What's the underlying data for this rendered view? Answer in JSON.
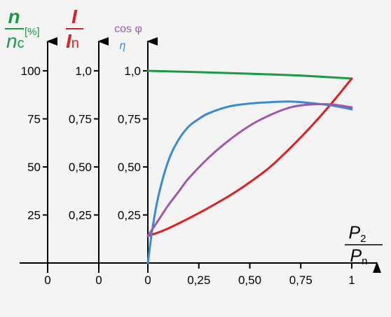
{
  "chart_data": {
    "type": "line",
    "x_axis": {
      "ticks": [
        {
          "value": 0,
          "label": "0"
        },
        {
          "value": 0.25,
          "label": "0,25"
        },
        {
          "value": 0.5,
          "label": "0,50"
        },
        {
          "value": 0.75,
          "label": "0,75"
        },
        {
          "value": 1,
          "label": "1"
        }
      ],
      "extra_zero_labels": [
        "0",
        "0"
      ],
      "label": {
        "num_main": "P",
        "num_sub": "2",
        "den_main": "P",
        "den_sub": "n"
      }
    },
    "y_axes": [
      {
        "id": "n",
        "label": {
          "num": "n",
          "den_main": "n",
          "den_sub": "c",
          "unit": "[%]"
        },
        "color": "#1a9a45",
        "range": [
          0,
          120
        ],
        "ticks": [
          {
            "value": 100,
            "label": "100"
          },
          {
            "value": 75,
            "label": "75"
          },
          {
            "value": 50,
            "label": "50"
          },
          {
            "value": 25,
            "label": "25"
          }
        ]
      },
      {
        "id": "I",
        "label": {
          "num": "I",
          "den_main": "I",
          "den_sub": "n"
        },
        "color": "#e02020",
        "range": [
          0,
          1.2
        ],
        "ticks": [
          {
            "value": 1.0,
            "label": "1,0"
          },
          {
            "value": 0.75,
            "label": "0,75"
          },
          {
            "value": 0.5,
            "label": "0,50"
          },
          {
            "value": 0.25,
            "label": "0,25"
          }
        ]
      },
      {
        "id": "cos",
        "label": {
          "line1": "cos φ",
          "line2": "η"
        },
        "color_line1": "#a058a8",
        "color_line2": "#3a8ad0",
        "range": [
          0,
          1.2
        ],
        "ticks": [
          {
            "value": 1.0,
            "label": "1,0"
          },
          {
            "value": 0.75,
            "label": "0,75"
          },
          {
            "value": 0.5,
            "label": "0,50"
          },
          {
            "value": 0.25,
            "label": "0,25"
          }
        ]
      }
    ],
    "series": [
      {
        "id": "speed",
        "axis": "cos",
        "color": "#1a9a45",
        "x": [
          0,
          0.25,
          0.5,
          0.75,
          1.0
        ],
        "y": [
          1.0,
          0.993,
          0.985,
          0.975,
          0.96
        ]
      },
      {
        "id": "current",
        "axis": "cos",
        "color": "#e02020",
        "x": [
          0,
          0.1,
          0.25,
          0.4,
          0.5,
          0.6,
          0.7,
          0.8,
          0.9,
          1.0
        ],
        "y": [
          0.14,
          0.18,
          0.26,
          0.35,
          0.42,
          0.5,
          0.6,
          0.71,
          0.83,
          0.96
        ]
      },
      {
        "id": "efficiency",
        "axis": "cos",
        "color": "#3a8ad0",
        "x": [
          0,
          0.02,
          0.05,
          0.1,
          0.15,
          0.2,
          0.25,
          0.3,
          0.4,
          0.5,
          0.6,
          0.7,
          0.8,
          0.9,
          1.0
        ],
        "y": [
          0.0,
          0.16,
          0.34,
          0.53,
          0.64,
          0.71,
          0.75,
          0.78,
          0.815,
          0.83,
          0.837,
          0.84,
          0.832,
          0.82,
          0.8
        ]
      },
      {
        "id": "power_factor",
        "axis": "cos",
        "color": "#a058a8",
        "x": [
          0,
          0.05,
          0.1,
          0.15,
          0.2,
          0.3,
          0.4,
          0.5,
          0.6,
          0.7,
          0.8,
          0.9,
          1.0
        ],
        "y": [
          0.14,
          0.22,
          0.3,
          0.37,
          0.44,
          0.55,
          0.64,
          0.715,
          0.77,
          0.81,
          0.825,
          0.825,
          0.81
        ]
      }
    ],
    "grid": false
  }
}
